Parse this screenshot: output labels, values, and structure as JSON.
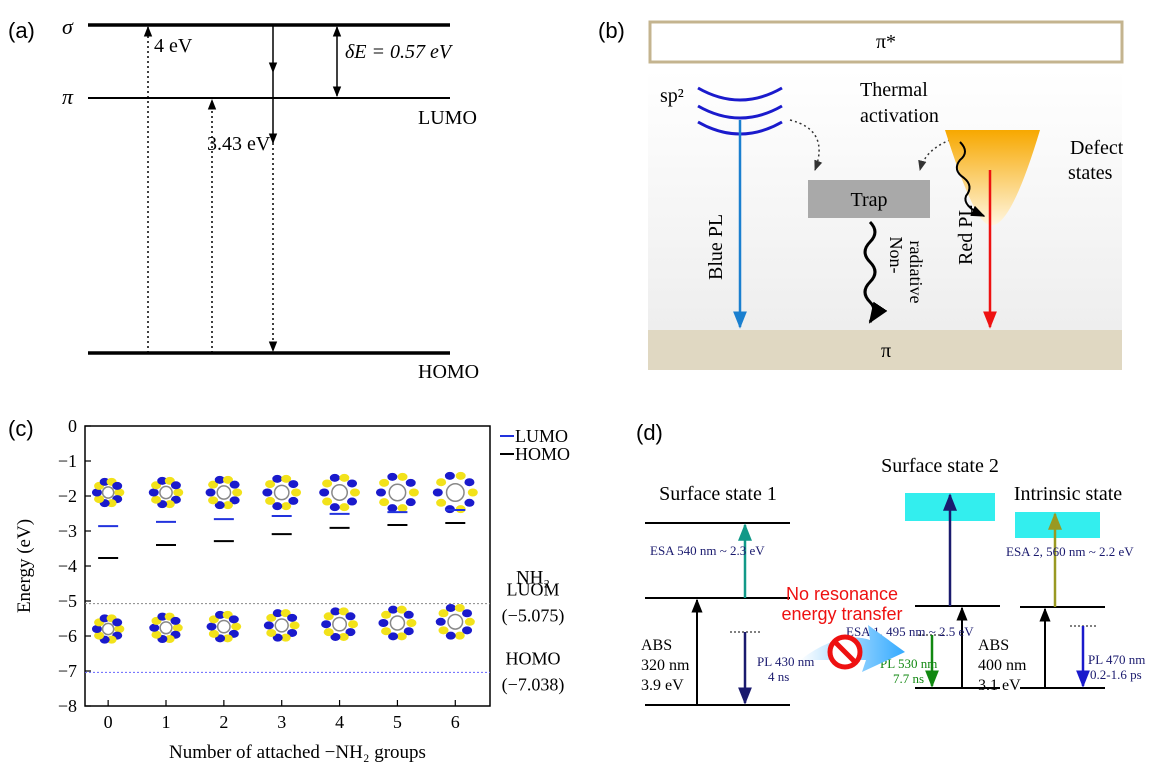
{
  "panels": {
    "a": {
      "label": "(a)",
      "sigma": "σ",
      "pi": "π",
      "lumo": "LUMO",
      "homo": "HOMO",
      "gap_sigma": "4 eV",
      "gap_pi": "3.43 eV",
      "delta": "δE = 0.57 eV"
    },
    "b": {
      "label": "(b)",
      "pi_star": "π*",
      "pi": "π",
      "sp2": "sp²",
      "thermal": [
        "Thermal",
        "activation"
      ],
      "trap": "Trap",
      "nonrad": [
        "Non-",
        "radiative"
      ],
      "defect": [
        "Defect",
        "states"
      ],
      "blue": "Blue PL",
      "red": "Red PL"
    },
    "d": {
      "label": "(d)",
      "ss1": "Surface state 1",
      "ss2": "Surface state 2",
      "intrinsic": "Intrinsic state",
      "esa": "ESA  540 nm ~ 2.3 eV",
      "abs1": [
        "ABS",
        "320 nm",
        "3.9 eV"
      ],
      "pl1": [
        "PL 430 nm",
        "4 ns"
      ],
      "esa1": "ESA 1, 495 nm ~ 2.5 eV",
      "pl2": [
        "PL 530 nm",
        "7.7 ns"
      ],
      "abs2": [
        "ABS",
        "400 nm",
        "3.1 eV"
      ],
      "esa2": "ESA 2, 560 nm ~ 2.2 eV",
      "pl3": [
        "PL 470 nm",
        "0.2-1.6 ps"
      ],
      "no_transfer": [
        "No resonance",
        "energy transfer"
      ]
    }
  },
  "chart_data": {
    "type": "scatter",
    "panel_label": "(c)",
    "x_label": "Number of attached −NH₂ groups",
    "y_label": "Energy (eV)",
    "x": [
      0,
      1,
      2,
      3,
      4,
      5,
      6
    ],
    "series": [
      {
        "name": "LUMO",
        "color": "#2233dd",
        "values": [
          -2.86,
          -2.74,
          -2.66,
          -2.57,
          -2.51,
          -2.46,
          -2.4
        ]
      },
      {
        "name": "HOMO",
        "color": "#000000",
        "values": [
          -3.77,
          -3.4,
          -3.29,
          -3.09,
          -2.91,
          -2.83,
          -2.77
        ]
      }
    ],
    "xlim": [
      -0.4,
      6.6
    ],
    "xticks": [
      0,
      1,
      2,
      3,
      4,
      5,
      6
    ],
    "ylim": [
      -8,
      0
    ],
    "yticks": [
      0,
      {
        "value": -1,
        "label": "−1"
      },
      {
        "value": -2,
        "label": "−2"
      },
      {
        "value": -3,
        "label": "−3"
      },
      {
        "value": -4,
        "label": "−4"
      },
      {
        "value": -5,
        "label": "−5"
      },
      {
        "value": -6,
        "label": "−6"
      },
      {
        "value": -7,
        "label": "−7"
      },
      {
        "value": -8,
        "label": "−8"
      }
    ],
    "annotation": "NH₂",
    "reference_lines": [
      {
        "value": -5.075,
        "name": "LUOM",
        "label": "(−5.075)",
        "color": "#888888"
      },
      {
        "value": -7.038,
        "name": "HOMO",
        "label": "(−7.038)",
        "color": "#6666ff"
      }
    ]
  }
}
